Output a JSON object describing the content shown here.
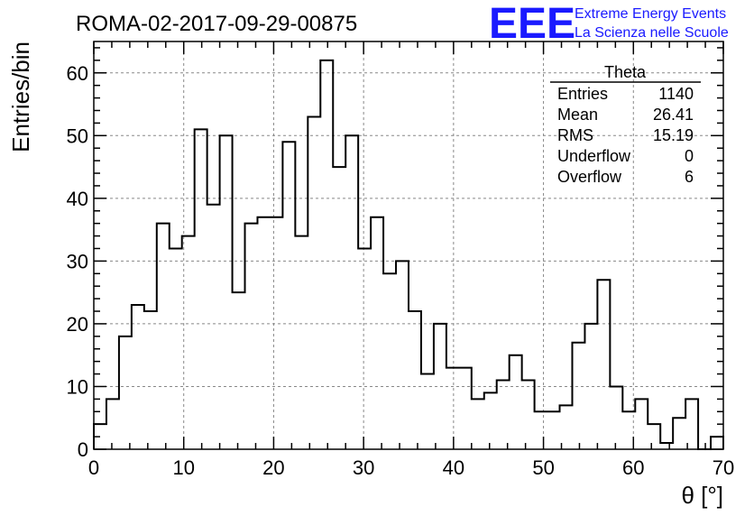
{
  "header": {
    "run_title": "ROMA-02-2017-09-29-00875",
    "logo_text": "EEE",
    "logo_line1": "Extreme Energy Events",
    "logo_line2": "La Scienza nelle Scuole",
    "logo_color": "#1a1aff"
  },
  "stats": {
    "name": "Theta",
    "rows": [
      {
        "label": "Entries",
        "value": "1140"
      },
      {
        "label": "Mean",
        "value": "26.41"
      },
      {
        "label": "RMS",
        "value": "15.19"
      },
      {
        "label": "Underflow",
        "value": "0"
      },
      {
        "label": "Overflow",
        "value": "6"
      }
    ]
  },
  "chart_data": {
    "type": "bar",
    "style": "step-histogram",
    "xlabel": "θ [°]",
    "ylabel": "Entries/bin",
    "xlim": [
      0,
      70
    ],
    "ylim": [
      0,
      65
    ],
    "grid": true,
    "bin_width": 1.4,
    "x_ticks": [
      0,
      10,
      20,
      30,
      40,
      50,
      60,
      70
    ],
    "y_ticks": [
      0,
      10,
      20,
      30,
      40,
      50,
      60
    ],
    "bin_edges_start": 0,
    "values": [
      4,
      8,
      18,
      23,
      22,
      36,
      32,
      34,
      51,
      39,
      50,
      25,
      36,
      37,
      37,
      49,
      34,
      53,
      62,
      45,
      50,
      32,
      37,
      28,
      30,
      22,
      12,
      20,
      13,
      13,
      8,
      9,
      11,
      15,
      11,
      6,
      6,
      7,
      17,
      20,
      27,
      10,
      6,
      8,
      4,
      1,
      5,
      8,
      0,
      2
    ]
  }
}
